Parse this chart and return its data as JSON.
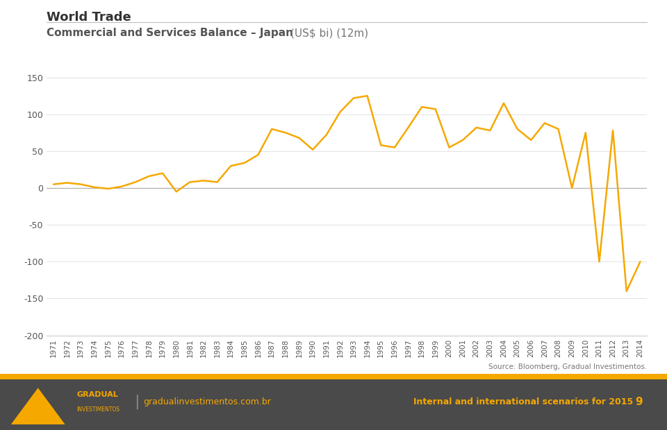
{
  "title_main": "World Trade",
  "subtitle_bold": "Commercial and Services Balance – Japan ",
  "subtitle_normal": "(US$ bi) (12m)",
  "line_color": "#F5A800",
  "line_width": 1.8,
  "background_color": "#FFFFFF",
  "source_text": "Source: Bloomberg, Gradual Investimentos.",
  "footer_bg": "#4A4A4A",
  "footer_gold": "#F5A800",
  "footer_text1": "gradualinvestimentos.com.br",
  "footer_text2": "Internal and international scenarios for 2015",
  "footer_page": "9",
  "ylim": [
    -200,
    150
  ],
  "yticks": [
    -200,
    -150,
    -100,
    -50,
    0,
    50,
    100,
    150
  ],
  "years": [
    1971,
    1972,
    1973,
    1974,
    1975,
    1976,
    1977,
    1978,
    1979,
    1980,
    1981,
    1982,
    1983,
    1984,
    1985,
    1986,
    1987,
    1988,
    1989,
    1990,
    1991,
    1992,
    1993,
    1994,
    1995,
    1996,
    1997,
    1998,
    1999,
    2000,
    2001,
    2002,
    2003,
    2004,
    2005,
    2006,
    2007,
    2008,
    2009,
    2010,
    2011,
    2012,
    2013,
    2014
  ],
  "values": [
    5,
    7,
    5,
    1,
    -1,
    2,
    8,
    16,
    20,
    -5,
    8,
    10,
    8,
    30,
    34,
    45,
    80,
    75,
    68,
    52,
    72,
    103,
    122,
    125,
    58,
    55,
    82,
    110,
    107,
    55,
    65,
    82,
    78,
    115,
    80,
    65,
    88,
    80,
    0,
    75,
    -100,
    78,
    -140,
    -100
  ]
}
